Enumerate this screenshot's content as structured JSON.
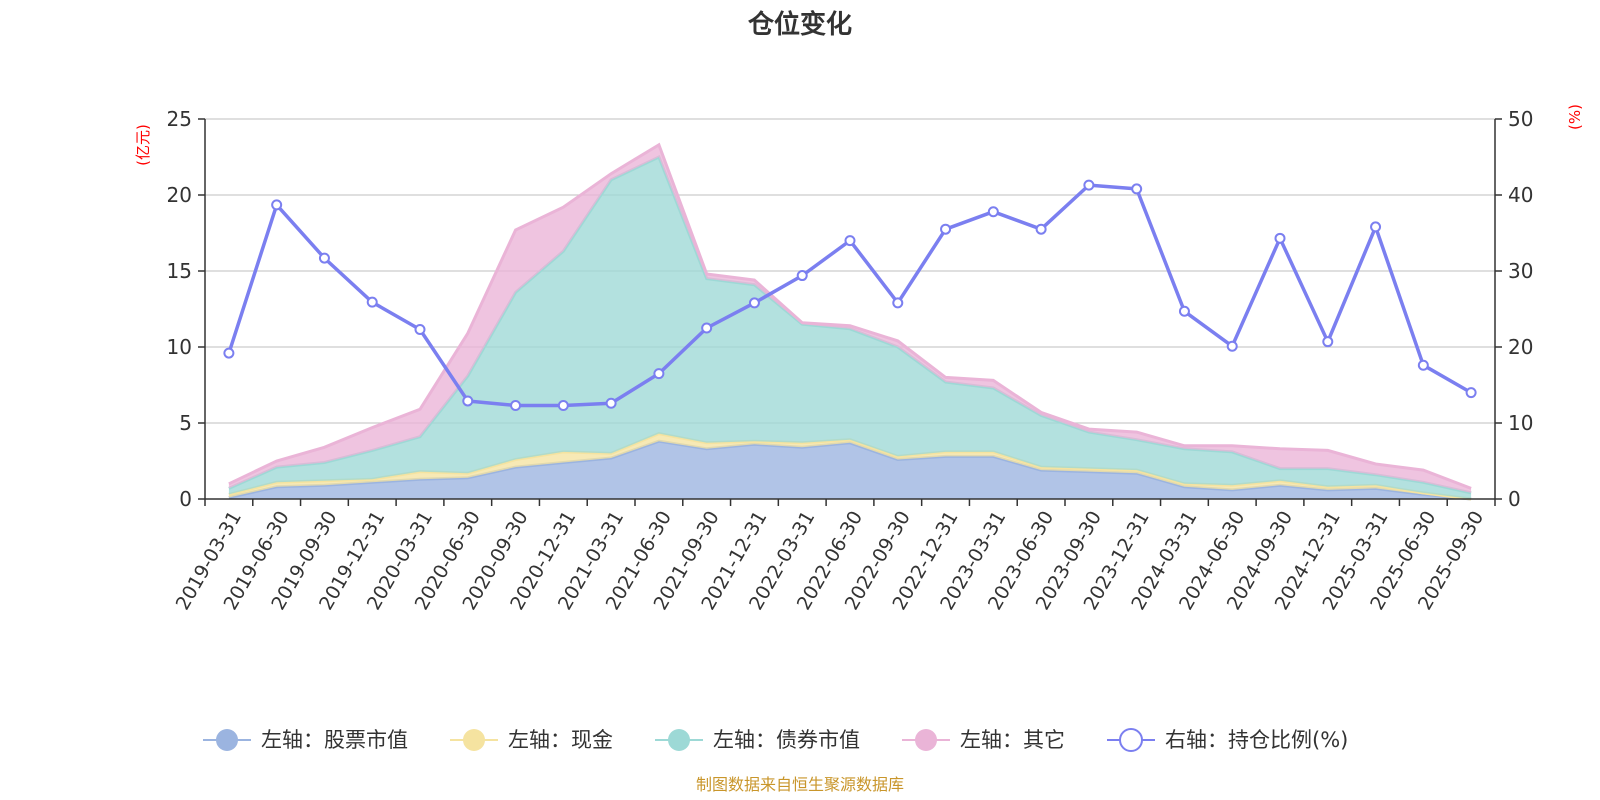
{
  "chart_data": {
    "type": "area",
    "title": "仓位变化",
    "left_axis_unit": "(亿元)",
    "right_axis_unit": "(%)",
    "ylim_left": [
      0,
      25
    ],
    "ylim_right": [
      0,
      50
    ],
    "yticks_left": [
      "0",
      "5",
      "10",
      "15",
      "20",
      "25"
    ],
    "yticks_right": [
      "0",
      "10",
      "20",
      "30",
      "40",
      "50"
    ],
    "categories": [
      "2019-03-31",
      "2019-06-30",
      "2019-09-30",
      "2019-12-31",
      "2020-03-31",
      "2020-06-30",
      "2020-09-30",
      "2020-12-31",
      "2021-03-31",
      "2021-06-30",
      "2021-09-30",
      "2021-12-31",
      "2022-03-31",
      "2022-06-30",
      "2022-09-30",
      "2022-12-31",
      "2023-03-31",
      "2023-06-30",
      "2023-09-30",
      "2023-12-31",
      "2024-03-31",
      "2024-06-30",
      "2024-09-30",
      "2024-12-31",
      "2025-03-31",
      "2025-06-30",
      "2025-09-30"
    ],
    "series": [
      {
        "name": "左轴：股票市值",
        "axis": "left",
        "kind": "stacked-area",
        "color": "#9bb4e0",
        "values": [
          0.1,
          0.8,
          0.9,
          1.1,
          1.3,
          1.4,
          2.1,
          2.4,
          2.7,
          3.8,
          3.3,
          3.6,
          3.4,
          3.7,
          2.6,
          2.8,
          2.8,
          1.9,
          1.8,
          1.7,
          0.8,
          0.6,
          0.9,
          0.6,
          0.7,
          0.3,
          0.0
        ]
      },
      {
        "name": "左轴：现金",
        "axis": "left",
        "kind": "stacked-area",
        "color": "#f5e3a0",
        "values": [
          0.2,
          0.3,
          0.3,
          0.2,
          0.5,
          0.3,
          0.5,
          0.7,
          0.3,
          0.5,
          0.4,
          0.2,
          0.3,
          0.2,
          0.2,
          0.3,
          0.3,
          0.2,
          0.2,
          0.2,
          0.2,
          0.3,
          0.3,
          0.2,
          0.2,
          0.1,
          0.0
        ]
      },
      {
        "name": "左轴：债券市值",
        "axis": "left",
        "kind": "stacked-area",
        "color": "#9dd9d6",
        "values": [
          0.4,
          1.0,
          1.2,
          1.9,
          2.3,
          6.4,
          11.0,
          13.2,
          18.0,
          18.2,
          10.8,
          10.3,
          7.8,
          7.3,
          7.2,
          4.6,
          4.2,
          3.4,
          2.4,
          2.0,
          2.3,
          2.2,
          0.8,
          1.2,
          0.7,
          0.7,
          0.4
        ]
      },
      {
        "name": "左轴：其它",
        "axis": "left",
        "kind": "stacked-area",
        "color": "#eab4d7",
        "values": [
          0.3,
          0.4,
          1.0,
          1.5,
          1.8,
          2.8,
          4.1,
          2.9,
          0.4,
          0.8,
          0.3,
          0.3,
          0.1,
          0.2,
          0.4,
          0.3,
          0.5,
          0.2,
          0.2,
          0.5,
          0.2,
          0.4,
          1.3,
          1.2,
          0.7,
          0.8,
          0.3
        ]
      },
      {
        "name": "右轴：持仓比例(%)",
        "axis": "right",
        "kind": "line",
        "color": "#7b7ff0",
        "values": [
          19.2,
          38.7,
          31.7,
          25.9,
          22.3,
          12.9,
          12.3,
          12.3,
          12.6,
          16.5,
          22.5,
          25.8,
          29.4,
          34.0,
          25.8,
          35.5,
          37.8,
          35.5,
          41.3,
          40.8,
          24.7,
          20.1,
          34.3,
          20.7,
          35.8,
          17.6,
          14.0
        ]
      }
    ],
    "source": "制图数据来自恒生聚源数据库"
  }
}
